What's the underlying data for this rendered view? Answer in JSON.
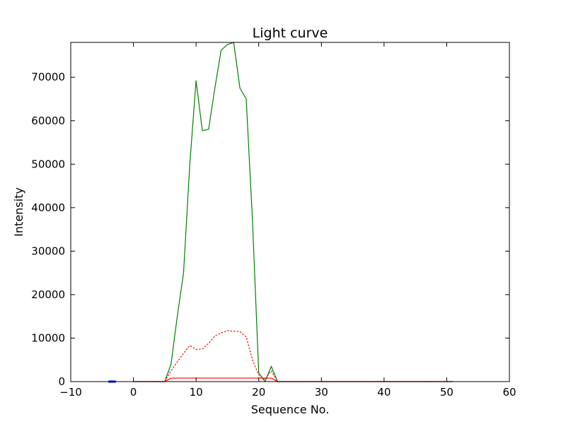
{
  "chart_data": {
    "type": "line",
    "title": "Light curve",
    "xlabel": "Sequence No.",
    "ylabel": "Intensity",
    "xlim": [
      -10,
      60
    ],
    "ylim": [
      0,
      78000
    ],
    "xticks": [
      -10,
      0,
      10,
      20,
      30,
      40,
      50,
      60
    ],
    "yticks": [
      0,
      10000,
      20000,
      30000,
      40000,
      50000,
      60000,
      70000
    ],
    "xtick_labels": [
      "−10",
      "0",
      "10",
      "20",
      "30",
      "40",
      "50",
      "60"
    ],
    "ytick_labels": [
      "0",
      "10000",
      "20000",
      "30000",
      "40000",
      "50000",
      "60000",
      "70000"
    ],
    "grid": false,
    "series": [
      {
        "color": "#008000",
        "style": "solid",
        "x": [
          0,
          1,
          2,
          3,
          4,
          5,
          6,
          7,
          8,
          9,
          10,
          11,
          12,
          13,
          14,
          15,
          16,
          17,
          18,
          19,
          20,
          21,
          22,
          23,
          24,
          25,
          26,
          27,
          28,
          29,
          30,
          31,
          32,
          33,
          34,
          35,
          36,
          37,
          38,
          39,
          40,
          41,
          42,
          43,
          44,
          45,
          46,
          47,
          48,
          49,
          50,
          51
        ],
        "y": [
          0,
          0,
          0,
          0,
          0,
          0,
          4000,
          15000,
          25000,
          50000,
          69200,
          57700,
          58000,
          67500,
          76200,
          77500,
          78000,
          67500,
          65000,
          37000,
          2000,
          0,
          3500,
          0,
          0,
          0,
          0,
          0,
          0,
          0,
          0,
          0,
          0,
          0,
          0,
          0,
          0,
          0,
          0,
          0,
          0,
          0,
          0,
          0,
          0,
          0,
          0,
          0,
          0,
          0,
          0,
          0
        ]
      },
      {
        "color": "#ff0000",
        "style": "dotted",
        "x": [
          0,
          1,
          2,
          3,
          4,
          5,
          6,
          7,
          8,
          9,
          10,
          11,
          12,
          13,
          14,
          15,
          16,
          17,
          18,
          19,
          20,
          21,
          22,
          23,
          24,
          25,
          26,
          27,
          28,
          29,
          30,
          31,
          32,
          33,
          34,
          35,
          36,
          37,
          38,
          39,
          40,
          41,
          42,
          43,
          44,
          45,
          46,
          47,
          48,
          49,
          50,
          51
        ],
        "y": [
          0,
          0,
          0,
          0,
          0,
          0,
          2500,
          4500,
          6500,
          8300,
          7400,
          7500,
          8800,
          10500,
          11200,
          11700,
          11600,
          11500,
          10300,
          5000,
          1500,
          500,
          2500,
          0,
          0,
          0,
          0,
          0,
          0,
          0,
          0,
          0,
          0,
          0,
          0,
          0,
          0,
          0,
          0,
          0,
          0,
          0,
          0,
          0,
          0,
          0,
          0,
          0,
          0,
          0,
          0,
          0
        ]
      },
      {
        "color": "#ff0000",
        "style": "solid",
        "x": [
          0,
          1,
          2,
          3,
          4,
          5,
          6,
          7,
          8,
          9,
          10,
          11,
          12,
          13,
          14,
          15,
          16,
          17,
          18,
          19,
          20,
          21,
          22,
          23,
          24,
          25,
          26,
          27,
          28,
          29,
          30,
          31,
          32,
          33,
          34,
          35,
          36,
          37,
          38,
          39,
          40,
          41,
          42,
          43,
          44,
          45,
          46,
          47,
          48,
          49,
          50,
          51
        ],
        "y": [
          0,
          0,
          0,
          0,
          0,
          0,
          800,
          800,
          800,
          800,
          800,
          800,
          800,
          800,
          800,
          800,
          800,
          800,
          800,
          800,
          800,
          800,
          800,
          0,
          0,
          0,
          0,
          0,
          0,
          0,
          0,
          0,
          0,
          0,
          0,
          0,
          0,
          0,
          0,
          0,
          0,
          0,
          0,
          0,
          0,
          0,
          0,
          0,
          0,
          0,
          0,
          0
        ]
      },
      {
        "color": "#0000ff",
        "style": "solid",
        "x": [
          -4,
          -3.7,
          -3.4,
          -3.1,
          -2.8
        ],
        "y": [
          0,
          0,
          0,
          0,
          0
        ]
      }
    ]
  }
}
